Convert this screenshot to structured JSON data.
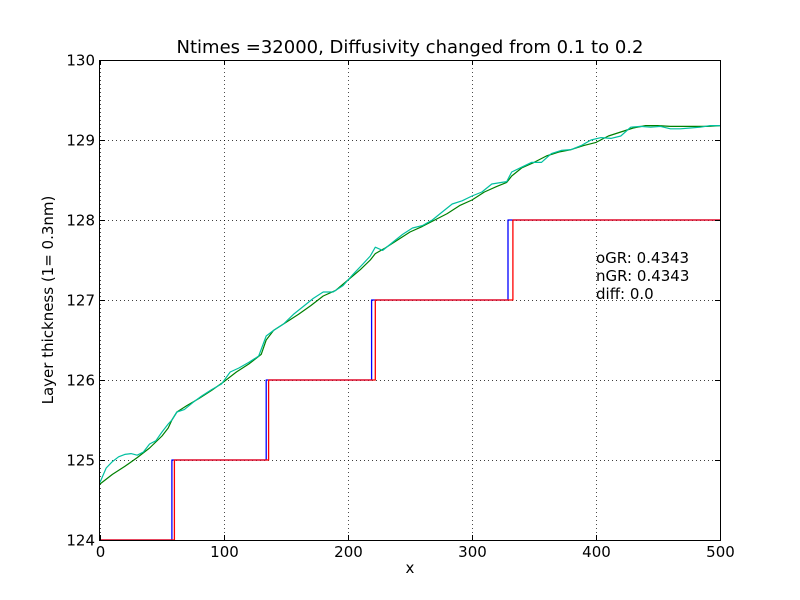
{
  "chart_data": {
    "type": "line",
    "title": "Ntimes =32000, Diffusivity changed from 0.1 to 0.2",
    "xlabel": "x",
    "ylabel": "Layer thickness (1= 0.3nm)",
    "xlim": [
      0,
      500
    ],
    "ylim": [
      124,
      130
    ],
    "xticks": [
      "0",
      "100",
      "200",
      "300",
      "400",
      "500"
    ],
    "yticks": [
      "124",
      "125",
      "126",
      "127",
      "128",
      "129",
      "130"
    ],
    "grid": true,
    "annotations": [
      "oGR: 0.4343",
      "nGR: 0.4343",
      "diff: 0.0"
    ],
    "series": [
      {
        "color": "#0000ff",
        "style": "step",
        "x": [
          0,
          58,
          58,
          134,
          134,
          219,
          219,
          329,
          329,
          500
        ],
        "y": [
          124,
          124,
          125,
          125,
          126,
          126,
          127,
          127,
          128,
          128
        ]
      },
      {
        "color": "#ff0000",
        "style": "step",
        "x": [
          0,
          60,
          60,
          136,
          136,
          222,
          222,
          333,
          333,
          500
        ],
        "y": [
          124,
          124,
          125,
          125,
          126,
          126,
          127,
          127,
          128,
          128
        ]
      },
      {
        "color": "#008000",
        "style": "line",
        "x": [
          0,
          10,
          20,
          30,
          40,
          50,
          55,
          58,
          62,
          70,
          80,
          90,
          100,
          110,
          120,
          130,
          134,
          140,
          150,
          160,
          170,
          180,
          190,
          200,
          210,
          218,
          222,
          230,
          240,
          250,
          260,
          270,
          280,
          290,
          300,
          310,
          320,
          328,
          332,
          340,
          350,
          360,
          370,
          380,
          390,
          400,
          410,
          420,
          430,
          440,
          450,
          460,
          470,
          480,
          490,
          500
        ],
        "y": [
          124.7,
          124.82,
          124.92,
          125.03,
          125.15,
          125.3,
          125.4,
          125.5,
          125.6,
          125.68,
          125.77,
          125.87,
          125.98,
          126.1,
          126.2,
          126.32,
          126.5,
          126.62,
          126.72,
          126.82,
          126.93,
          127.05,
          127.12,
          127.25,
          127.38,
          127.5,
          127.58,
          127.65,
          127.75,
          127.85,
          127.92,
          128.0,
          128.08,
          128.18,
          128.25,
          128.35,
          128.42,
          128.47,
          128.55,
          128.65,
          128.72,
          128.8,
          128.85,
          128.88,
          128.93,
          128.97,
          129.05,
          129.1,
          129.15,
          129.18,
          129.18,
          129.17,
          129.17,
          129.17,
          129.17,
          129.18
        ]
      },
      {
        "color": "#00bfa0",
        "style": "line",
        "x": [
          0,
          5,
          10,
          15,
          20,
          25,
          30,
          35,
          40,
          45,
          50,
          55,
          58,
          62,
          68,
          75,
          82,
          90,
          98,
          105,
          112,
          120,
          128,
          134,
          140,
          148,
          156,
          164,
          172,
          180,
          188,
          196,
          204,
          212,
          218,
          222,
          228,
          236,
          244,
          252,
          260,
          268,
          276,
          284,
          292,
          300,
          308,
          316,
          324,
          328,
          332,
          340,
          348,
          356,
          364,
          372,
          380,
          388,
          396,
          404,
          412,
          420,
          428,
          436,
          444,
          452,
          460,
          468,
          476,
          484,
          492,
          500
        ],
        "y": [
          124.72,
          124.9,
          124.98,
          125.04,
          125.07,
          125.08,
          125.06,
          125.1,
          125.2,
          125.24,
          125.35,
          125.45,
          125.5,
          125.6,
          125.63,
          125.72,
          125.8,
          125.88,
          125.95,
          126.1,
          126.15,
          126.22,
          126.3,
          126.55,
          126.62,
          126.7,
          126.82,
          126.92,
          127.02,
          127.1,
          127.1,
          127.18,
          127.32,
          127.45,
          127.55,
          127.66,
          127.62,
          127.72,
          127.82,
          127.9,
          127.93,
          128.0,
          128.1,
          128.2,
          128.24,
          128.3,
          128.35,
          128.45,
          128.47,
          128.48,
          128.6,
          128.66,
          128.72,
          128.72,
          128.83,
          128.87,
          128.88,
          128.93,
          129.0,
          129.03,
          129.02,
          129.05,
          129.16,
          129.17,
          129.16,
          129.17,
          129.14,
          129.14,
          129.15,
          129.16,
          129.18,
          129.18
        ]
      }
    ]
  }
}
